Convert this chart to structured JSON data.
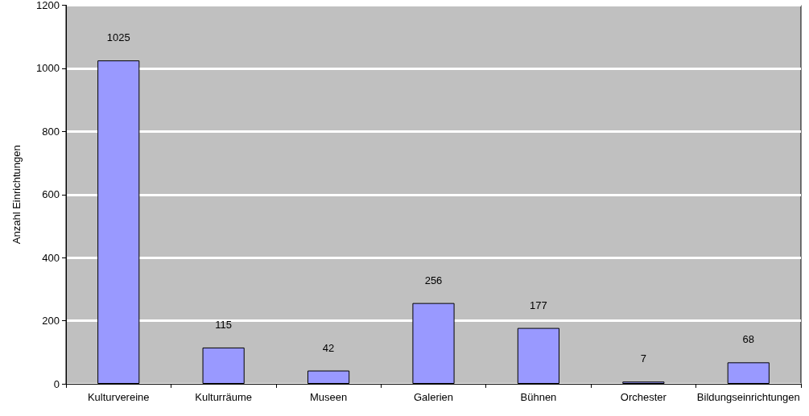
{
  "chart_data": {
    "type": "bar",
    "ylabel": "Anzahl Einrichtungen",
    "categories": [
      "Kulturvereine",
      "Kulturräume",
      "Museen",
      "Galerien",
      "Bühnen",
      "Orchester",
      "Bildungseinrichtungen"
    ],
    "values": [
      1025,
      115,
      42,
      256,
      177,
      7,
      68
    ],
    "color": "#9999ff",
    "ylim": [
      0,
      1200
    ],
    "yticks": [
      0,
      200,
      400,
      600,
      800,
      1000,
      1200
    ],
    "grid": "y",
    "data_labels": true
  }
}
